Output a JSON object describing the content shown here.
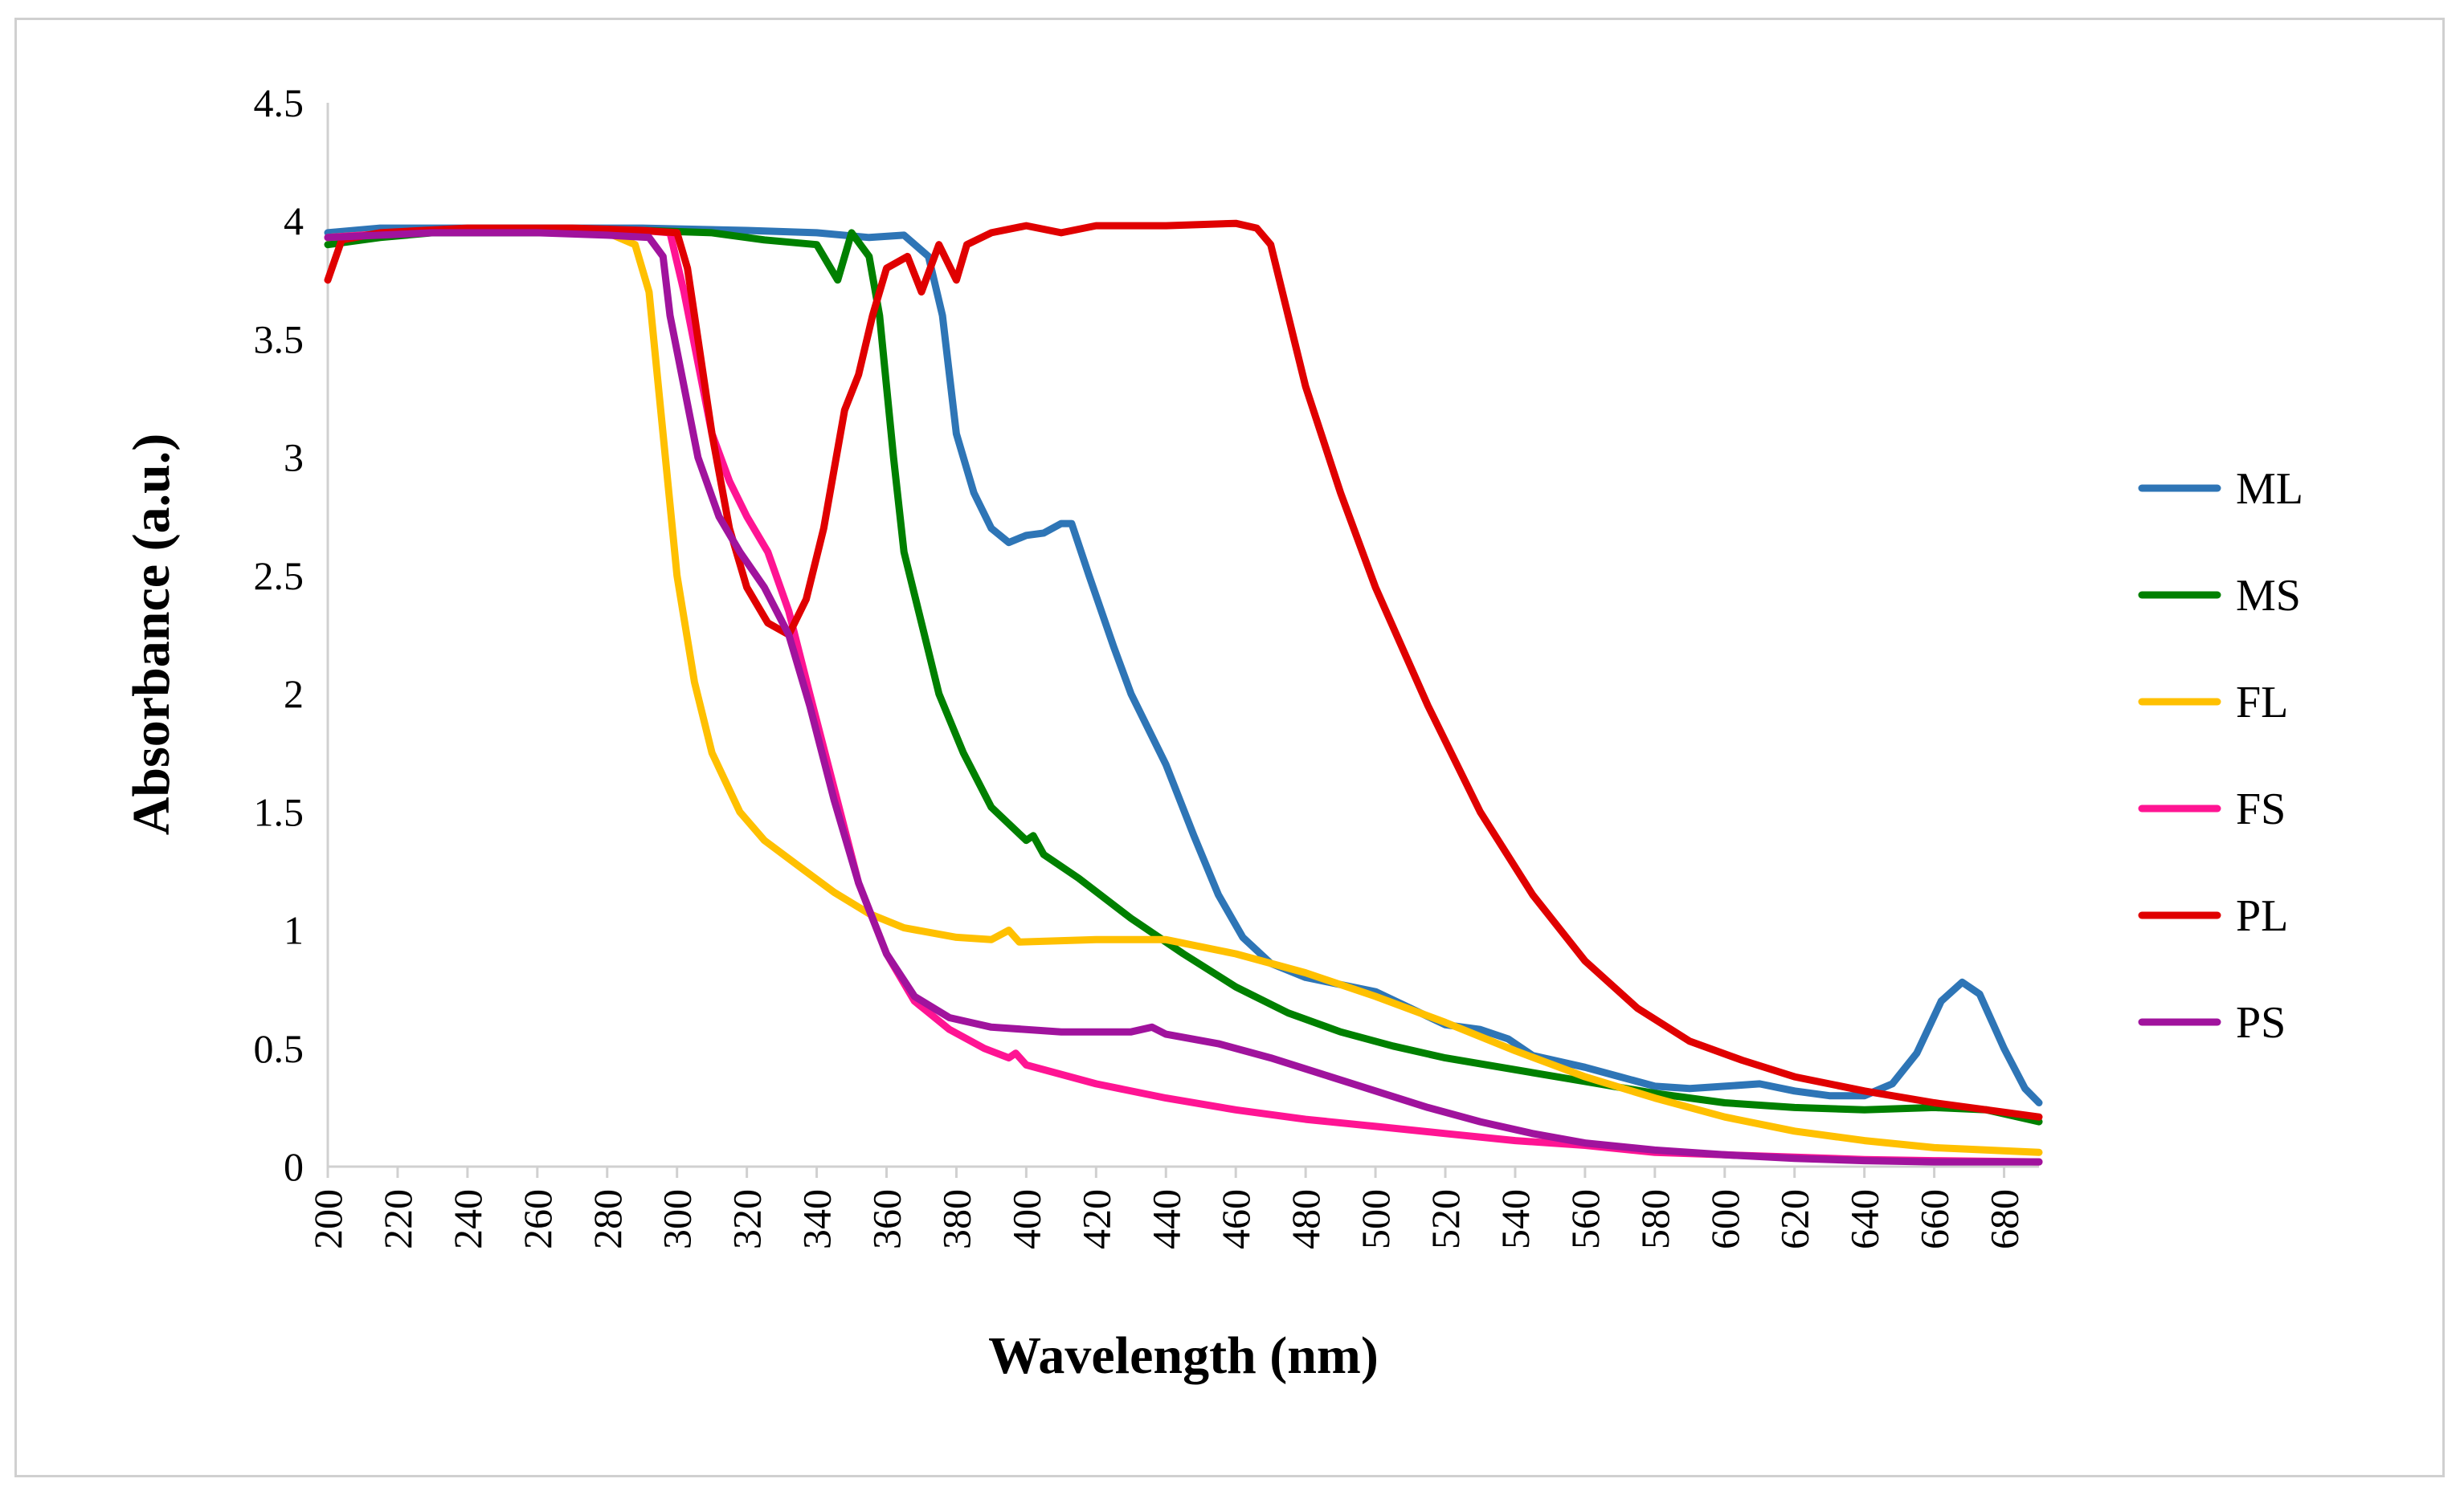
{
  "chart_data": {
    "type": "line",
    "title": "",
    "xlabel": "Wavelength (nm)",
    "ylabel": "Absorbance (a.u.)",
    "xlim": [
      200,
      690
    ],
    "ylim": [
      0,
      4.5
    ],
    "x_ticks": [
      200,
      220,
      240,
      260,
      280,
      300,
      320,
      340,
      360,
      380,
      400,
      420,
      440,
      460,
      480,
      500,
      520,
      540,
      560,
      580,
      600,
      620,
      640,
      660,
      680
    ],
    "x_tick_labels": [
      "200",
      "220",
      "240",
      "260",
      "280",
      "300",
      "320",
      "340",
      "360",
      "380",
      "400",
      "420",
      "440",
      "460",
      "480",
      "500",
      "520",
      "540",
      "560",
      "580",
      "600",
      "620",
      "640",
      "660",
      "680"
    ],
    "y_ticks": [
      0,
      0.5,
      1,
      1.5,
      2,
      2.5,
      3,
      3.5,
      4,
      4.5
    ],
    "y_tick_labels": [
      "0",
      "0.5",
      "1",
      "1.5",
      "2",
      "2.5",
      "3",
      "3.5",
      "4",
      "4.5"
    ],
    "grid": false,
    "legend_position": "right",
    "series": [
      {
        "name": "ML",
        "color": "#2E75B6",
        "points": [
          [
            200,
            3.95
          ],
          [
            215,
            3.97
          ],
          [
            230,
            3.97
          ],
          [
            260,
            3.97
          ],
          [
            290,
            3.97
          ],
          [
            320,
            3.96
          ],
          [
            340,
            3.95
          ],
          [
            355,
            3.93
          ],
          [
            365,
            3.94
          ],
          [
            372,
            3.85
          ],
          [
            376,
            3.6
          ],
          [
            380,
            3.1
          ],
          [
            385,
            2.85
          ],
          [
            390,
            2.7
          ],
          [
            395,
            2.64
          ],
          [
            400,
            2.67
          ],
          [
            405,
            2.68
          ],
          [
            410,
            2.72
          ],
          [
            413,
            2.72
          ],
          [
            418,
            2.5
          ],
          [
            425,
            2.2
          ],
          [
            430,
            2.0
          ],
          [
            440,
            1.7
          ],
          [
            448,
            1.4
          ],
          [
            455,
            1.15
          ],
          [
            462,
            0.97
          ],
          [
            470,
            0.86
          ],
          [
            480,
            0.8
          ],
          [
            490,
            0.77
          ],
          [
            500,
            0.74
          ],
          [
            510,
            0.67
          ],
          [
            520,
            0.6
          ],
          [
            530,
            0.58
          ],
          [
            538,
            0.54
          ],
          [
            545,
            0.47
          ],
          [
            560,
            0.42
          ],
          [
            570,
            0.38
          ],
          [
            580,
            0.34
          ],
          [
            590,
            0.33
          ],
          [
            600,
            0.34
          ],
          [
            610,
            0.35
          ],
          [
            620,
            0.32
          ],
          [
            630,
            0.3
          ],
          [
            640,
            0.3
          ],
          [
            648,
            0.35
          ],
          [
            655,
            0.48
          ],
          [
            662,
            0.7
          ],
          [
            668,
            0.78
          ],
          [
            673,
            0.73
          ],
          [
            680,
            0.5
          ],
          [
            686,
            0.33
          ],
          [
            690,
            0.27
          ]
        ]
      },
      {
        "name": "MS",
        "color": "#008000",
        "points": [
          [
            200,
            3.9
          ],
          [
            215,
            3.93
          ],
          [
            230,
            3.95
          ],
          [
            260,
            3.95
          ],
          [
            290,
            3.96
          ],
          [
            310,
            3.95
          ],
          [
            325,
            3.92
          ],
          [
            340,
            3.9
          ],
          [
            346,
            3.75
          ],
          [
            350,
            3.95
          ],
          [
            355,
            3.85
          ],
          [
            358,
            3.6
          ],
          [
            362,
            3.0
          ],
          [
            365,
            2.6
          ],
          [
            370,
            2.3
          ],
          [
            375,
            2.0
          ],
          [
            382,
            1.75
          ],
          [
            390,
            1.52
          ],
          [
            400,
            1.38
          ],
          [
            402,
            1.4
          ],
          [
            405,
            1.32
          ],
          [
            415,
            1.22
          ],
          [
            430,
            1.05
          ],
          [
            445,
            0.9
          ],
          [
            460,
            0.76
          ],
          [
            475,
            0.65
          ],
          [
            490,
            0.57
          ],
          [
            505,
            0.51
          ],
          [
            520,
            0.46
          ],
          [
            540,
            0.41
          ],
          [
            560,
            0.36
          ],
          [
            580,
            0.31
          ],
          [
            600,
            0.27
          ],
          [
            620,
            0.25
          ],
          [
            640,
            0.24
          ],
          [
            660,
            0.25
          ],
          [
            675,
            0.24
          ],
          [
            690,
            0.19
          ]
        ]
      },
      {
        "name": "FL",
        "color": "#FFC000",
        "points": [
          [
            200,
            3.93
          ],
          [
            230,
            3.96
          ],
          [
            260,
            3.96
          ],
          [
            280,
            3.95
          ],
          [
            288,
            3.9
          ],
          [
            292,
            3.7
          ],
          [
            296,
            3.1
          ],
          [
            300,
            2.5
          ],
          [
            305,
            2.05
          ],
          [
            310,
            1.75
          ],
          [
            318,
            1.5
          ],
          [
            325,
            1.38
          ],
          [
            335,
            1.27
          ],
          [
            345,
            1.16
          ],
          [
            355,
            1.07
          ],
          [
            365,
            1.01
          ],
          [
            380,
            0.97
          ],
          [
            390,
            0.96
          ],
          [
            395,
            1.0
          ],
          [
            398,
            0.95
          ],
          [
            420,
            0.96
          ],
          [
            440,
            0.96
          ],
          [
            460,
            0.9
          ],
          [
            480,
            0.82
          ],
          [
            500,
            0.72
          ],
          [
            520,
            0.61
          ],
          [
            540,
            0.49
          ],
          [
            560,
            0.38
          ],
          [
            580,
            0.29
          ],
          [
            600,
            0.21
          ],
          [
            620,
            0.15
          ],
          [
            640,
            0.11
          ],
          [
            660,
            0.08
          ],
          [
            690,
            0.06
          ]
        ]
      },
      {
        "name": "FS",
        "color": "#FF1493",
        "points": [
          [
            200,
            3.93
          ],
          [
            230,
            3.96
          ],
          [
            260,
            3.96
          ],
          [
            290,
            3.96
          ],
          [
            298,
            3.95
          ],
          [
            302,
            3.7
          ],
          [
            306,
            3.4
          ],
          [
            310,
            3.1
          ],
          [
            315,
            2.9
          ],
          [
            320,
            2.75
          ],
          [
            326,
            2.6
          ],
          [
            332,
            2.35
          ],
          [
            338,
            2.0
          ],
          [
            345,
            1.6
          ],
          [
            352,
            1.2
          ],
          [
            360,
            0.9
          ],
          [
            368,
            0.7
          ],
          [
            378,
            0.58
          ],
          [
            388,
            0.5
          ],
          [
            395,
            0.46
          ],
          [
            397,
            0.48
          ],
          [
            400,
            0.43
          ],
          [
            420,
            0.35
          ],
          [
            440,
            0.29
          ],
          [
            460,
            0.24
          ],
          [
            480,
            0.2
          ],
          [
            500,
            0.17
          ],
          [
            520,
            0.14
          ],
          [
            540,
            0.11
          ],
          [
            560,
            0.09
          ],
          [
            580,
            0.06
          ],
          [
            600,
            0.05
          ],
          [
            620,
            0.04
          ],
          [
            640,
            0.03
          ],
          [
            660,
            0.025
          ],
          [
            690,
            0.02
          ]
        ]
      },
      {
        "name": "PL",
        "color": "#E00000",
        "points": [
          [
            200,
            3.75
          ],
          [
            204,
            3.92
          ],
          [
            215,
            3.95
          ],
          [
            240,
            3.97
          ],
          [
            270,
            3.97
          ],
          [
            290,
            3.96
          ],
          [
            300,
            3.95
          ],
          [
            303,
            3.8
          ],
          [
            306,
            3.5
          ],
          [
            310,
            3.1
          ],
          [
            315,
            2.7
          ],
          [
            320,
            2.45
          ],
          [
            326,
            2.3
          ],
          [
            332,
            2.25
          ],
          [
            337,
            2.4
          ],
          [
            342,
            2.7
          ],
          [
            348,
            3.2
          ],
          [
            352,
            3.35
          ],
          [
            356,
            3.6
          ],
          [
            360,
            3.8
          ],
          [
            366,
            3.85
          ],
          [
            370,
            3.7
          ],
          [
            375,
            3.9
          ],
          [
            380,
            3.75
          ],
          [
            383,
            3.9
          ],
          [
            390,
            3.95
          ],
          [
            400,
            3.98
          ],
          [
            410,
            3.95
          ],
          [
            420,
            3.98
          ],
          [
            440,
            3.98
          ],
          [
            460,
            3.99
          ],
          [
            466,
            3.97
          ],
          [
            470,
            3.9
          ],
          [
            475,
            3.6
          ],
          [
            480,
            3.3
          ],
          [
            490,
            2.85
          ],
          [
            500,
            2.45
          ],
          [
            515,
            1.95
          ],
          [
            530,
            1.5
          ],
          [
            545,
            1.15
          ],
          [
            560,
            0.87
          ],
          [
            575,
            0.67
          ],
          [
            590,
            0.53
          ],
          [
            605,
            0.45
          ],
          [
            620,
            0.38
          ],
          [
            640,
            0.32
          ],
          [
            660,
            0.27
          ],
          [
            675,
            0.24
          ],
          [
            690,
            0.21
          ]
        ]
      },
      {
        "name": "PS",
        "color": "#A0139D",
        "points": [
          [
            200,
            3.93
          ],
          [
            230,
            3.95
          ],
          [
            260,
            3.95
          ],
          [
            280,
            3.94
          ],
          [
            292,
            3.93
          ],
          [
            296,
            3.85
          ],
          [
            298,
            3.6
          ],
          [
            302,
            3.3
          ],
          [
            306,
            3.0
          ],
          [
            312,
            2.75
          ],
          [
            318,
            2.6
          ],
          [
            325,
            2.45
          ],
          [
            332,
            2.25
          ],
          [
            338,
            1.95
          ],
          [
            345,
            1.55
          ],
          [
            352,
            1.2
          ],
          [
            360,
            0.9
          ],
          [
            368,
            0.72
          ],
          [
            378,
            0.63
          ],
          [
            390,
            0.59
          ],
          [
            410,
            0.57
          ],
          [
            430,
            0.57
          ],
          [
            436,
            0.59
          ],
          [
            440,
            0.56
          ],
          [
            455,
            0.52
          ],
          [
            470,
            0.46
          ],
          [
            485,
            0.39
          ],
          [
            500,
            0.32
          ],
          [
            515,
            0.25
          ],
          [
            530,
            0.19
          ],
          [
            545,
            0.14
          ],
          [
            560,
            0.1
          ],
          [
            580,
            0.07
          ],
          [
            600,
            0.05
          ],
          [
            620,
            0.035
          ],
          [
            640,
            0.025
          ],
          [
            660,
            0.02
          ],
          [
            690,
            0.02
          ]
        ]
      }
    ]
  }
}
